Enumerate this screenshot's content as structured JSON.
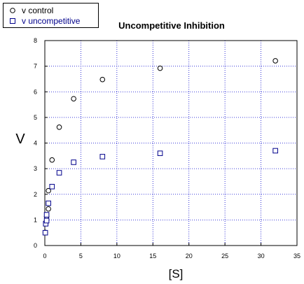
{
  "chart_data": {
    "type": "scatter",
    "title": "Uncompetitive Inhibition",
    "xlabel": "[S]",
    "ylabel": "V",
    "xlim": [
      0,
      35
    ],
    "ylim": [
      0,
      8
    ],
    "xticks": [
      0,
      5,
      10,
      15,
      20,
      25,
      30,
      35
    ],
    "yticks": [
      0,
      1,
      2,
      3,
      4,
      5,
      6,
      7,
      8
    ],
    "grid": true,
    "legend_position": "top-left",
    "series": [
      {
        "name": "v control",
        "marker": "circle",
        "color": "#000000",
        "points": [
          [
            0.0625,
            0.51
          ],
          [
            0.125,
            0.9
          ],
          [
            0.25,
            1.13
          ],
          [
            0.5,
            1.43
          ],
          [
            0.5,
            2.14
          ],
          [
            1.0,
            3.34
          ],
          [
            2.0,
            4.62
          ],
          [
            4.0,
            5.73
          ],
          [
            8.0,
            6.48
          ],
          [
            16.0,
            6.92
          ],
          [
            32.0,
            7.21
          ]
        ]
      },
      {
        "name": "v uncompetitive",
        "marker": "square",
        "color": "#00008b",
        "points": [
          [
            0.0625,
            0.5
          ],
          [
            0.125,
            0.85
          ],
          [
            0.25,
            0.97
          ],
          [
            0.25,
            1.2
          ],
          [
            0.5,
            1.65
          ],
          [
            1.0,
            2.3
          ],
          [
            2.0,
            2.84
          ],
          [
            4.0,
            3.25
          ],
          [
            8.0,
            3.47
          ],
          [
            16.0,
            3.6
          ],
          [
            32.0,
            3.7
          ]
        ]
      }
    ]
  }
}
